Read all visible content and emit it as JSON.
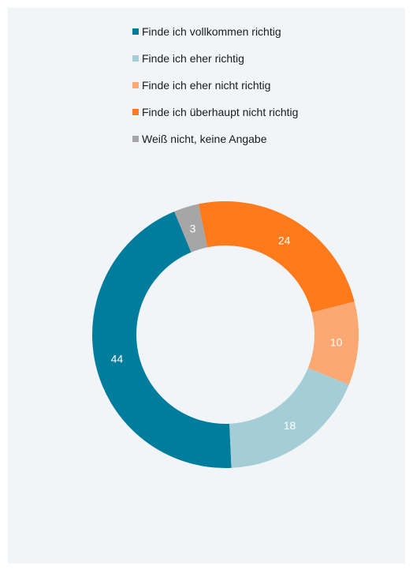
{
  "chart_data": {
    "type": "pie",
    "variant": "donut",
    "categories": [
      "Finde ich vollkommen richtig",
      "Finde ich eher richtig",
      "Finde ich eher nicht richtig",
      "Finde ich überhaupt nicht richtig",
      "Weiß nicht, keine Angabe"
    ],
    "values": [
      44,
      18,
      10,
      24,
      3
    ],
    "value_labels": [
      "44",
      "18",
      "10",
      "24",
      "3"
    ],
    "colors": [
      "#007d9d",
      "#a5cdd6",
      "#fca873",
      "#fe7a1a",
      "#a6a6a6"
    ],
    "legend_position": "top",
    "title": "",
    "xlabel": "",
    "ylabel": ""
  }
}
